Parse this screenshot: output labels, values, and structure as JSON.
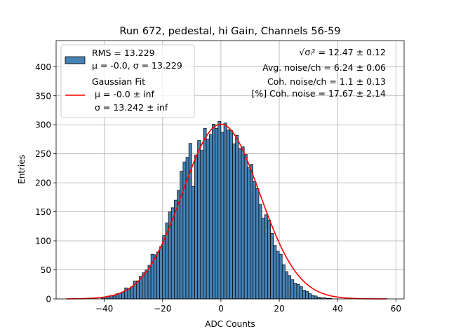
{
  "chart_data": {
    "type": "bar",
    "title": "Run 672, pedestal, hi Gain, Channels 56-59",
    "xlabel": "ADC Counts",
    "ylabel": "Entries",
    "xlim": [
      -56.5,
      62.8
    ],
    "ylim": [
      0,
      445
    ],
    "xticks": [
      -40,
      -20,
      0,
      20,
      40,
      60
    ],
    "yticks": [
      0,
      50,
      100,
      150,
      200,
      250,
      300,
      350,
      400
    ],
    "grid": true,
    "bin_start": -53,
    "bin_width": 1,
    "counts": [
      0,
      0,
      0,
      0,
      0,
      0,
      0,
      0,
      0,
      0,
      0,
      0,
      3,
      3,
      5,
      6,
      5,
      9,
      10,
      12,
      19,
      17,
      21,
      31,
      31,
      39,
      45,
      50,
      58,
      77,
      76,
      81,
      90,
      109,
      131,
      150,
      157,
      170,
      187,
      220,
      236,
      244,
      268,
      194,
      248,
      273,
      256,
      294,
      275,
      283,
      301,
      294,
      306,
      287,
      303,
      291,
      290,
      267,
      282,
      259,
      262,
      249,
      226,
      232,
      202,
      190,
      163,
      139,
      145,
      136,
      113,
      92,
      82,
      77,
      59,
      47,
      40,
      33,
      27,
      25,
      21,
      15,
      13,
      9,
      6,
      5,
      3,
      2,
      2,
      1,
      1,
      0,
      0,
      0,
      0,
      0,
      0,
      0,
      0,
      0,
      0,
      0,
      0,
      0,
      0,
      0,
      0,
      0,
      0,
      0
    ],
    "series": [
      {
        "name": "histogram",
        "label_lines": [
          "RMS = 13.229",
          "μ = -0.0, σ = 13.229"
        ],
        "color": "#4682b4"
      },
      {
        "name": "gaussian_fit",
        "type": "line",
        "label_lines": [
          "Gaussian Fit",
          " μ = -0.0 ± inf",
          " σ = 13.242 ± inf"
        ],
        "color": "#ff0000",
        "mu": 0.0,
        "sigma": 13.242,
        "amplitude": 301,
        "x_range": [
          -53,
          57
        ]
      }
    ],
    "legend_position": "top-left",
    "annotations": [
      {
        "math": "√σᵢ²",
        "text": " = 12.47 ± 0.12"
      },
      {
        "text": "Avg. noise/ch = 6.24 ± 0.06"
      },
      {
        "text": "Coh. noise/ch = 1.1 ± 0.13"
      },
      {
        "text": "[%] Coh. noise = 17.67 ± 2.14"
      }
    ]
  }
}
